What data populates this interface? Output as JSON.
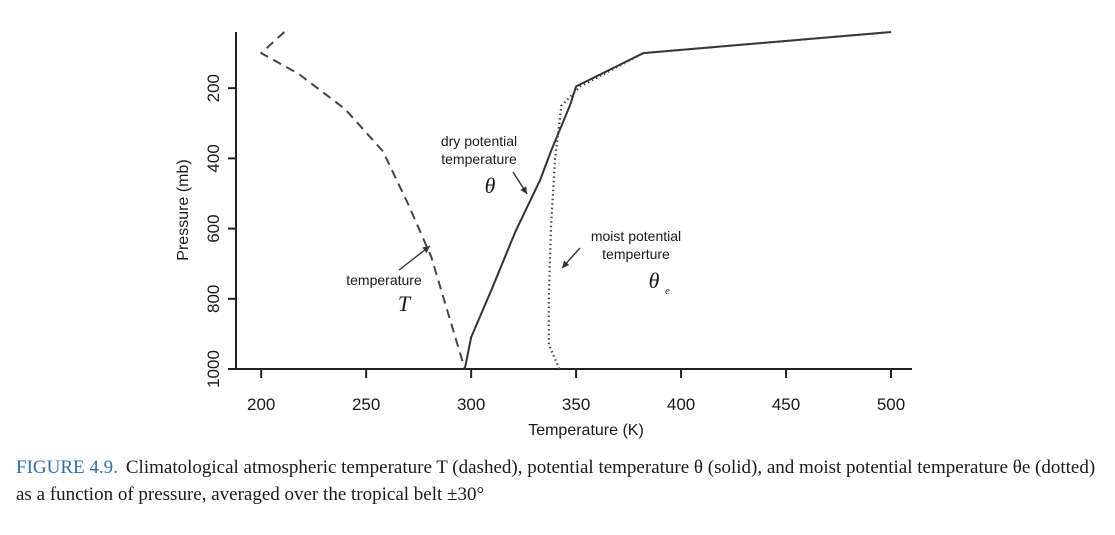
{
  "chart_data": {
    "type": "line",
    "xlabel": "Temperature (K)",
    "ylabel": "Pressure (mb)",
    "xlim": [
      188,
      510
    ],
    "ylim": [
      1000,
      40
    ],
    "x_ticks": [
      200,
      250,
      300,
      350,
      400,
      450,
      500
    ],
    "y_ticks": [
      200,
      400,
      600,
      800,
      1000
    ],
    "series": [
      {
        "name": "temperature",
        "style": "dashed",
        "points": [
          [
            211,
            40
          ],
          [
            200,
            100
          ],
          [
            218,
            160
          ],
          [
            240,
            260
          ],
          [
            258,
            380
          ],
          [
            270,
            530
          ],
          [
            281,
            680
          ],
          [
            288,
            820
          ],
          [
            297,
            1000
          ]
        ]
      },
      {
        "name": "dry potential temperature",
        "style": "solid",
        "points": [
          [
            297,
            1000
          ],
          [
            300,
            910
          ],
          [
            310,
            770
          ],
          [
            321,
            610
          ],
          [
            333,
            460
          ],
          [
            338,
            380
          ],
          [
            347,
            250
          ],
          [
            350,
            195
          ],
          [
            382,
            100
          ],
          [
            500,
            40
          ]
        ]
      },
      {
        "name": "moist potential temperture",
        "style": "dotted",
        "points": [
          [
            342,
            1000
          ],
          [
            337,
            930
          ],
          [
            337,
            800
          ],
          [
            338,
            600
          ],
          [
            340,
            400
          ],
          [
            343,
            250
          ],
          [
            352,
            195
          ],
          [
            382,
            100
          ],
          [
            500,
            40
          ]
        ]
      }
    ],
    "annotations": [
      {
        "lines": [
          "dry potential",
          "temperature"
        ],
        "symbol": "θ",
        "series": "dry potential temperature"
      },
      {
        "lines": [
          "moist potential",
          "temperture"
        ],
        "symbol": "θ",
        "subscript": "e",
        "series": "moist potential temperture"
      },
      {
        "lines": [
          "temperature"
        ],
        "symbol": "T",
        "series": "temperature"
      }
    ]
  },
  "caption": {
    "label": "FIGURE 4.9.",
    "text": "Climatological atmospheric temperature T (dashed), potential temperature θ (solid), and moist potential temperature θe (dotted) as a function of pressure, averaged over the tropical belt ±30°"
  }
}
